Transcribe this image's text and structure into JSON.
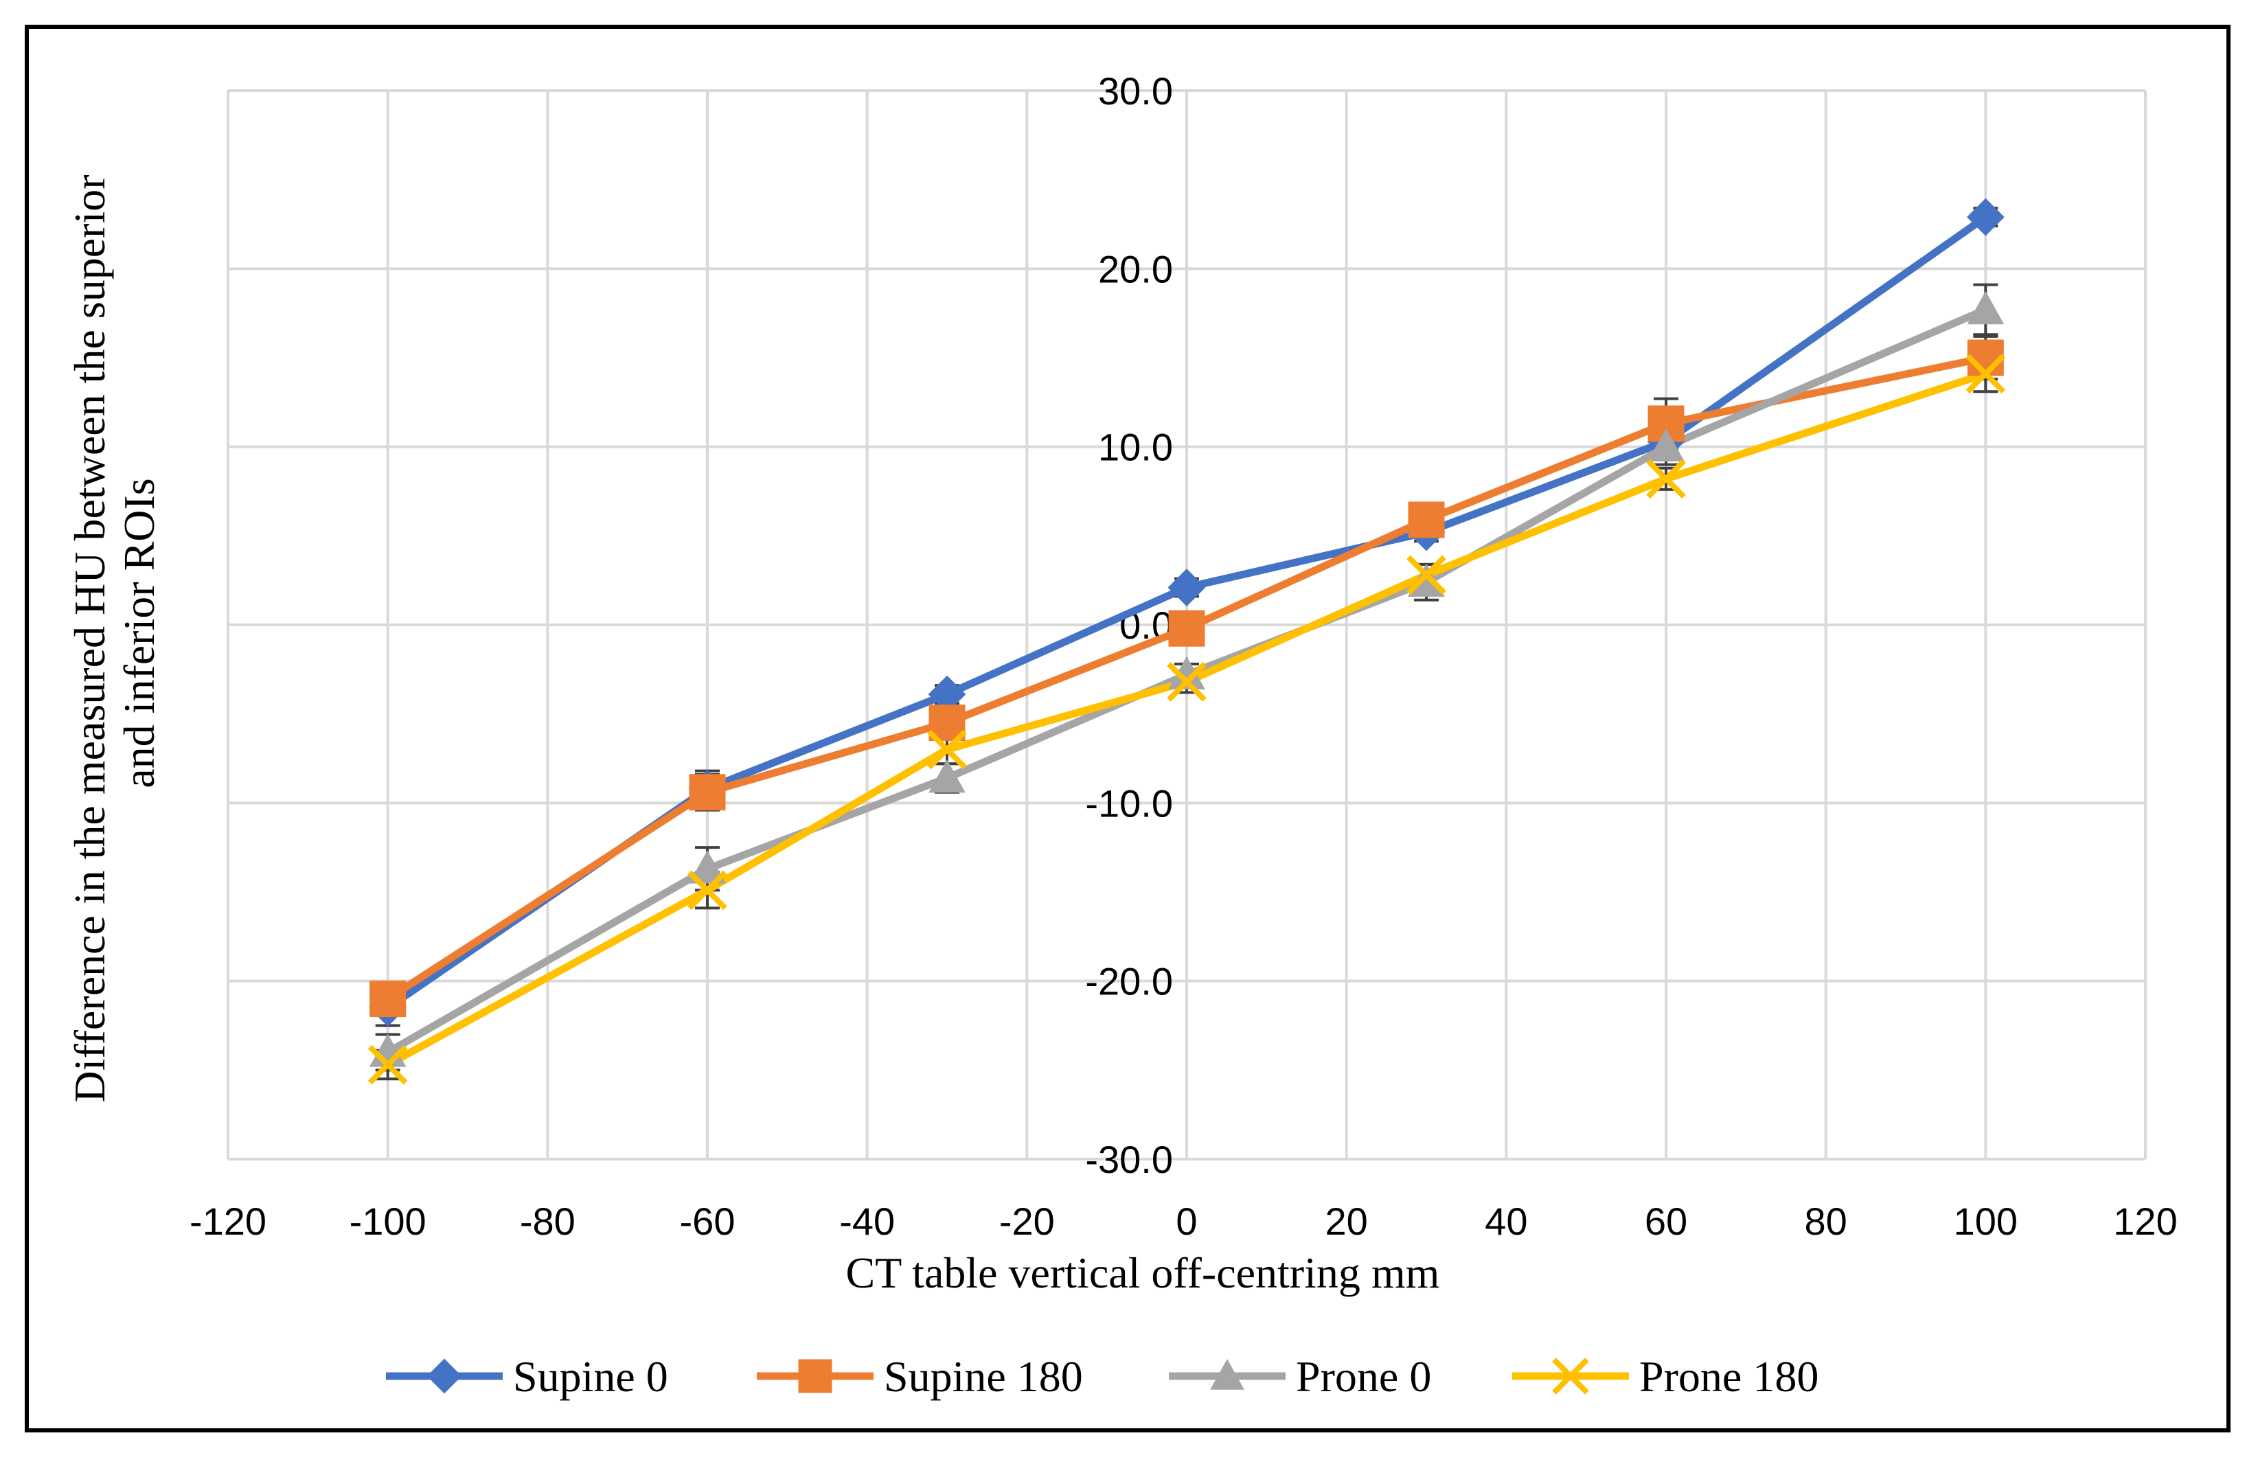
{
  "chart_data": {
    "type": "line",
    "title": "",
    "xlabel": "CT table vertical off-centring mm",
    "ylabel_lines": [
      "Difference in the measured HU between the superior",
      "and inferior ROIs"
    ],
    "xlim": [
      -120,
      120
    ],
    "ylim": [
      -30,
      30
    ],
    "x_ticks": [
      -120,
      -100,
      -80,
      -60,
      -40,
      -20,
      0,
      20,
      40,
      60,
      80,
      100,
      120
    ],
    "x_tick_labels": [
      "-120",
      "-100",
      "-80",
      "-60",
      "-40",
      "-20",
      "0",
      "20",
      "40",
      "60",
      "80",
      "100",
      "120"
    ],
    "y_ticks": [
      30,
      20,
      10,
      0,
      -10,
      -20,
      -30
    ],
    "y_tick_labels": [
      "30.0",
      "20.0",
      "10.0",
      "0.0",
      "-10.0",
      "-20.0",
      "-30.0"
    ],
    "grid": true,
    "legend_position": "bottom",
    "x": [
      -100,
      -60,
      -30,
      0,
      30,
      60,
      100
    ],
    "series": [
      {
        "name": "Supine 0",
        "color": "#4472C4",
        "marker": "diamond",
        "values": [
          -21.5,
          -9.2,
          -3.9,
          2.1,
          5.2,
          10.3,
          22.9
        ],
        "error": [
          1.0,
          1.0,
          0.5,
          0.5,
          0.5,
          1.0,
          0.5
        ]
      },
      {
        "name": "Supine 180",
        "color": "#ED7D31",
        "marker": "square",
        "values": [
          -21.0,
          -9.4,
          -5.5,
          -0.2,
          5.9,
          11.3,
          15.0
        ],
        "error": [
          0.8,
          1.0,
          0.8,
          0.6,
          0.5,
          1.4,
          1.2
        ]
      },
      {
        "name": "Prone 0",
        "color": "#A5A5A5",
        "marker": "triangle",
        "values": [
          -24.0,
          -13.7,
          -8.6,
          -2.8,
          2.4,
          10.0,
          17.7
        ],
        "error": [
          1.0,
          1.2,
          0.8,
          0.6,
          1.0,
          1.0,
          1.4
        ]
      },
      {
        "name": "Prone 180",
        "color": "#FFC000",
        "marker": "x",
        "values": [
          -24.7,
          -14.9,
          -7.0,
          -3.2,
          2.8,
          8.2,
          14.1
        ],
        "error": [
          0.8,
          1.0,
          0.8,
          0.6,
          0.6,
          0.6,
          1.0
        ]
      }
    ]
  }
}
